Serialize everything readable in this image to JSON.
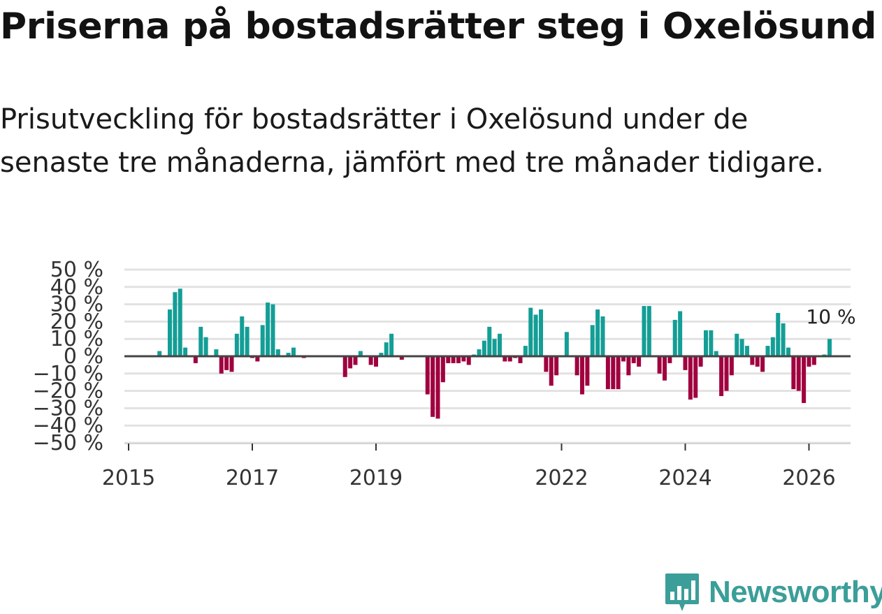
{
  "title": "Priserna på bostadsrätter steg i Oxelösund",
  "subtitle": "Prisutveckling för bostadsrätter i Oxelösund under de senaste tre månaderna, jämfört med tre månader tidigare.",
  "brand": {
    "name": "Newsworthy",
    "color": "#3b9e99"
  },
  "colors": {
    "positive": "#139e96",
    "negative": "#a0003f",
    "grid": "#e2e2e2",
    "zero": "#444444",
    "axis": "#cccccc"
  },
  "chart_data": {
    "type": "bar",
    "title": "Priserna på bostadsrätter steg i Oxelösund",
    "xlabel": "",
    "ylabel": "",
    "x_start": 2015.0,
    "step": 0.0833333,
    "ylim": [
      -50,
      50
    ],
    "yticks": [
      50,
      40,
      30,
      20,
      10,
      0,
      -10,
      -20,
      -30,
      -40,
      -50
    ],
    "ytick_labels": [
      "50 %",
      "40 %",
      "30 %",
      "20 %",
      "10 %",
      "0 %",
      "−10 %",
      "−20 %",
      "−30 %",
      "−40 %",
      "−50 %"
    ],
    "xticks": [
      2015,
      2017,
      2019,
      2022,
      2024,
      2026
    ],
    "xtick_labels": [
      "2015",
      "2017",
      "2019",
      "2022",
      "2024",
      "2026"
    ],
    "grid": true,
    "values": [
      0,
      0,
      0,
      0,
      0,
      0,
      3,
      0,
      27,
      37,
      39,
      5,
      0,
      -4,
      17,
      11,
      0,
      4,
      -10,
      -8,
      -9,
      13,
      23,
      17,
      -1,
      -3,
      18,
      31,
      30,
      4,
      0,
      2,
      5,
      0,
      -1,
      0,
      0,
      0,
      0,
      0,
      0,
      0,
      -12,
      -7,
      -5,
      3,
      0,
      -5,
      -6,
      2,
      8,
      13,
      0,
      -2,
      0,
      0,
      0,
      0,
      -22,
      -35,
      -36,
      -15,
      -4,
      -4,
      -4,
      -3,
      -5,
      1,
      4,
      9,
      17,
      10,
      13,
      -3,
      -3,
      -1,
      -4,
      6,
      28,
      24,
      27,
      -9,
      -17,
      -11,
      0,
      14,
      0,
      -11,
      -22,
      -17,
      18,
      27,
      23,
      -19,
      -19,
      -19,
      -3,
      -11,
      -4,
      -6,
      29,
      29,
      0,
      -10,
      -14,
      -4,
      21,
      26,
      -8,
      -25,
      -24,
      -6,
      15,
      15,
      3,
      -23,
      -20,
      -11,
      13,
      10,
      6,
      -5,
      -6,
      -9,
      6,
      11,
      25,
      19,
      5,
      -19,
      -20,
      -27,
      -6,
      -5,
      0,
      1,
      10
    ],
    "annotation": {
      "label": "10 %",
      "value": 10
    }
  }
}
